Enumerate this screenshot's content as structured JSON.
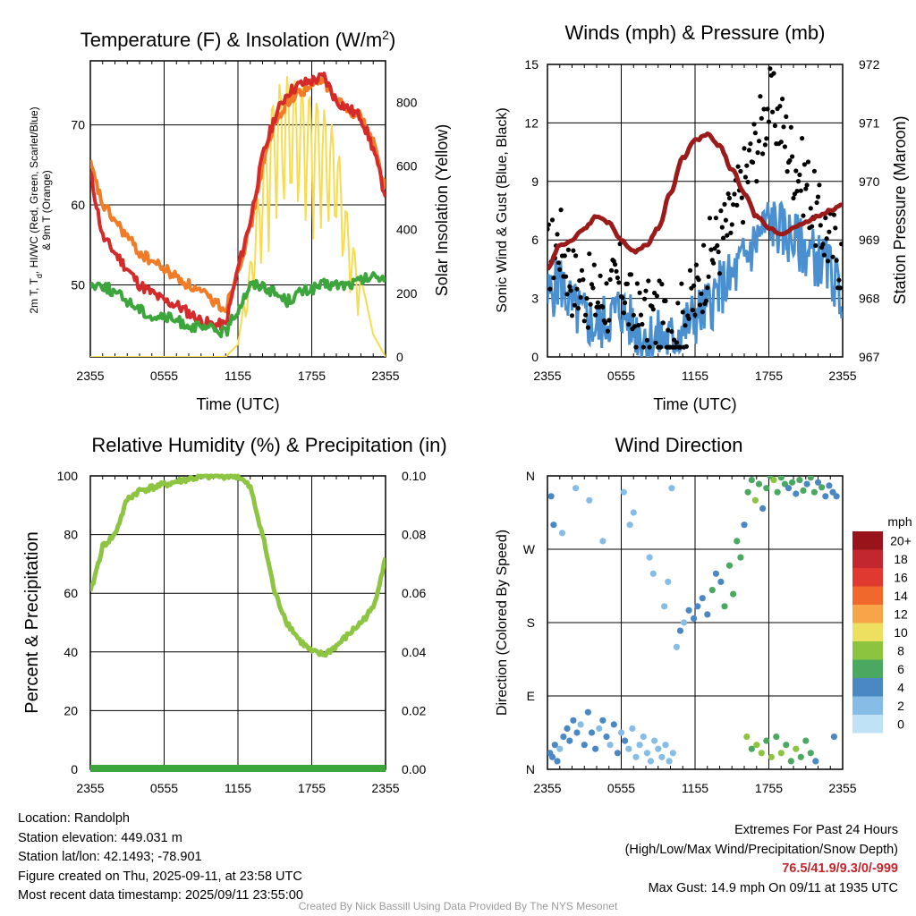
{
  "panels": {
    "temperature": {
      "title_main": "Temperature (F) & Insolation (W/m",
      "title_sup": "2",
      "title_close": ")",
      "ylabel_line1": "2m T, T",
      "ylabel_sub": "d",
      "ylabel_line1_rest": ", HI/WC (Red, Green, Scarlet/Blue)",
      "ylabel_line2": "& 9m T (Orange)",
      "y2label": "Solar Insolation (Yellow)",
      "xlabel": "Time (UTC)"
    },
    "winds": {
      "title": "Winds (mph) & Pressure (mb)",
      "ylabel": "Sonic Wind & Gust (Blue, Black)",
      "y2label": "Station Pressure (Maroon)",
      "xlabel": "Time (UTC)"
    },
    "humidity": {
      "title": "Relative Humidity (%) & Precipitation (in)",
      "ylabel": "Percent & Precipitation"
    },
    "direction": {
      "title": "Wind Direction",
      "ylabel": "Direction (Colored By Speed)",
      "legend_title": "mph"
    }
  },
  "chart_data": [
    {
      "type": "line",
      "title": "Temperature (F) & Insolation (W/m2)",
      "xlabel": "Time (UTC)",
      "ylabel": "2m T, Td, HI/WC (Red, Green, Scarlet/Blue) & 9m T (Orange)",
      "y2label": "Solar Insolation (Yellow)",
      "x_ticks": [
        "2355",
        "0555",
        "1155",
        "1755",
        "2355"
      ],
      "y_ticks": [
        50,
        60,
        70
      ],
      "y2_ticks": [
        0,
        200,
        400,
        600,
        800
      ],
      "ylim": [
        41,
        78
      ],
      "y2lim": [
        0,
        930
      ],
      "x": [
        0,
        1,
        2,
        3,
        4,
        5,
        6,
        7,
        8,
        9,
        10,
        11,
        12,
        13,
        14,
        15,
        16,
        17,
        18,
        19,
        20,
        21,
        22,
        23,
        24
      ],
      "series": [
        {
          "name": "2m T",
          "color": "#d42a2a",
          "axis": "left",
          "values": [
            64,
            56,
            54,
            52,
            50,
            49,
            48,
            47.5,
            46.5,
            45.5,
            45,
            45,
            52,
            58,
            66,
            71,
            74,
            75,
            75.5,
            76,
            73,
            72,
            71,
            67,
            61
          ]
        },
        {
          "name": "9m T",
          "color": "#f07c28",
          "axis": "left",
          "values": [
            65,
            60,
            58,
            56,
            54,
            53,
            52,
            51,
            50,
            49,
            48,
            47,
            52,
            57,
            65,
            70,
            73,
            74,
            75,
            75.5,
            73,
            72,
            71,
            68,
            62
          ]
        },
        {
          "name": "Td",
          "color": "#3ca53c",
          "axis": "left",
          "values": [
            50,
            50,
            49,
            48,
            47,
            46,
            46,
            45.5,
            45,
            44.5,
            44.5,
            44,
            47,
            50,
            50,
            49,
            48,
            49,
            49.5,
            50,
            50,
            50,
            50.5,
            51,
            51
          ]
        },
        {
          "name": "Solar Insolation",
          "color": "#f5dc50",
          "axis": "right",
          "values": [
            0,
            0,
            0,
            0,
            0,
            0,
            0,
            0,
            0,
            0,
            0,
            0,
            40,
            300,
            620,
            850,
            880,
            860,
            830,
            780,
            700,
            420,
            250,
            70,
            0
          ]
        }
      ]
    },
    {
      "type": "line",
      "title": "Winds (mph) & Pressure (mb)",
      "xlabel": "Time (UTC)",
      "ylabel": "Sonic Wind & Gust (Blue, Black)",
      "y2label": "Station Pressure (Maroon)",
      "x_ticks": [
        "2355",
        "0555",
        "1155",
        "1755",
        "2355"
      ],
      "y_ticks": [
        0,
        3,
        6,
        9,
        12,
        15
      ],
      "y2_ticks": [
        967,
        968,
        969,
        970,
        971,
        972
      ],
      "ylim": [
        0,
        15
      ],
      "y2lim": [
        967,
        972
      ],
      "x": [
        0,
        1,
        2,
        3,
        4,
        5,
        6,
        7,
        8,
        9,
        10,
        11,
        12,
        13,
        14,
        15,
        16,
        17,
        18,
        19,
        20,
        21,
        22,
        23,
        24
      ],
      "series": [
        {
          "name": "Sonic Wind",
          "color": "#4a90d0",
          "axis": "left",
          "values": [
            3,
            4,
            2.5,
            2,
            1.5,
            2,
            2.5,
            1.5,
            1,
            1,
            0.8,
            1.5,
            2,
            2.5,
            3.5,
            4,
            5,
            6,
            7,
            6.5,
            6,
            5.5,
            5,
            4.5,
            3
          ]
        },
        {
          "name": "Gust",
          "color": "#000000",
          "axis": "left",
          "values": [
            5,
            6,
            4,
            3.5,
            3,
            3,
            4,
            2,
            2,
            2,
            1.5,
            2,
            3,
            5,
            6,
            7,
            9,
            11,
            13,
            12,
            10,
            9,
            7,
            6,
            5
          ]
        },
        {
          "name": "Station Pressure",
          "color": "#9b1a1a",
          "axis": "right",
          "values": [
            968.5,
            968.9,
            969.0,
            969.2,
            969.4,
            969.3,
            969.0,
            968.8,
            968.9,
            969.2,
            969.8,
            970.4,
            970.7,
            970.8,
            970.6,
            970.2,
            969.8,
            969.4,
            969.2,
            969.1,
            969.2,
            969.3,
            969.4,
            969.5,
            969.6
          ]
        }
      ]
    },
    {
      "type": "line",
      "title": "Relative Humidity (%) & Precipitation (in)",
      "ylabel": "Percent & Precipitation",
      "x_ticks": [
        "2355",
        "0555",
        "1155",
        "1755",
        "2355"
      ],
      "y_ticks": [
        0,
        20,
        40,
        60,
        80,
        100
      ],
      "y2_ticks": [
        "0.00",
        "0.02",
        "0.04",
        "0.06",
        "0.08",
        "0.10"
      ],
      "ylim": [
        0,
        100
      ],
      "y2lim": [
        0,
        0.1
      ],
      "x": [
        0,
        1,
        2,
        3,
        4,
        5,
        6,
        7,
        8,
        9,
        10,
        11,
        12,
        13,
        14,
        15,
        16,
        17,
        18,
        19,
        20,
        21,
        22,
        23,
        24
      ],
      "series": [
        {
          "name": "Relative Humidity",
          "color": "#8dc441",
          "axis": "left",
          "values": [
            60,
            76,
            80,
            92,
            95,
            96,
            97,
            98,
            99,
            99.5,
            100,
            100,
            100,
            96,
            80,
            60,
            50,
            44,
            40,
            39,
            42,
            46,
            50,
            55,
            72
          ]
        },
        {
          "name": "Precipitation",
          "color": "#3ca53c",
          "axis": "right",
          "values": [
            0,
            0,
            0,
            0,
            0,
            0,
            0,
            0,
            0,
            0,
            0,
            0,
            0,
            0,
            0,
            0,
            0,
            0,
            0,
            0,
            0,
            0,
            0,
            0,
            0
          ]
        }
      ]
    },
    {
      "type": "scatter",
      "title": "Wind Direction",
      "ylabel": "Direction (Colored By Speed)",
      "x_ticks": [
        "2355",
        "0555",
        "1155",
        "1755",
        "2355"
      ],
      "y_ticks": [
        "N",
        "E",
        "S",
        "W",
        "N"
      ],
      "ylim": [
        0,
        360
      ],
      "legend_title": "mph",
      "legend": [
        {
          "label": "20+",
          "color": "#98141a"
        },
        {
          "label": "18",
          "color": "#c2272d"
        },
        {
          "label": "16",
          "color": "#e03a30"
        },
        {
          "label": "14",
          "color": "#f0682c"
        },
        {
          "label": "12",
          "color": "#f7a548"
        },
        {
          "label": "10",
          "color": "#ede060"
        },
        {
          "label": "8",
          "color": "#8cc43f"
        },
        {
          "label": "6",
          "color": "#4aa860"
        },
        {
          "label": "4",
          "color": "#4a88c4"
        },
        {
          "label": "2",
          "color": "#86bde6"
        },
        {
          "label": "0",
          "color": "#bfe2f6"
        }
      ],
      "points": [
        [
          0.2,
          20,
          3
        ],
        [
          0.4,
          15,
          4
        ],
        [
          0.6,
          30,
          3
        ],
        [
          0.8,
          10,
          4
        ],
        [
          1.0,
          25,
          2
        ],
        [
          1.3,
          40,
          3
        ],
        [
          1.6,
          50,
          3
        ],
        [
          1.8,
          35,
          4
        ],
        [
          2.1,
          60,
          3
        ],
        [
          2.4,
          45,
          3
        ],
        [
          2.7,
          55,
          2
        ],
        [
          3.0,
          30,
          3
        ],
        [
          3.3,
          70,
          3
        ],
        [
          3.6,
          45,
          4
        ],
        [
          3.9,
          25,
          3
        ],
        [
          4.2,
          50,
          2
        ],
        [
          4.5,
          60,
          3
        ],
        [
          4.8,
          40,
          3
        ],
        [
          5.1,
          30,
          2
        ],
        [
          5.4,
          55,
          3
        ],
        [
          5.7,
          20,
          3
        ],
        [
          6.0,
          45,
          2
        ],
        [
          6.3,
          35,
          3
        ],
        [
          6.6,
          25,
          2
        ],
        [
          6.9,
          50,
          2
        ],
        [
          7.2,
          15,
          1
        ],
        [
          7.5,
          30,
          2
        ],
        [
          7.8,
          40,
          1
        ],
        [
          8.1,
          20,
          2
        ],
        [
          8.4,
          10,
          1
        ],
        [
          8.7,
          35,
          1
        ],
        [
          9.0,
          25,
          2
        ],
        [
          9.3,
          15,
          1
        ],
        [
          9.6,
          30,
          1
        ],
        [
          9.9,
          10,
          2
        ],
        [
          10.2,
          20,
          1
        ],
        [
          0.3,
          335,
          3
        ],
        [
          0.5,
          300,
          3
        ],
        [
          1.2,
          290,
          1
        ],
        [
          2.3,
          345,
          1
        ],
        [
          3.4,
          330,
          1
        ],
        [
          4.5,
          280,
          1
        ],
        [
          6.2,
          340,
          1
        ],
        [
          6.7,
          300,
          1
        ],
        [
          7.0,
          315,
          1
        ],
        [
          8.3,
          260,
          1
        ],
        [
          8.6,
          240,
          1
        ],
        [
          9.5,
          200,
          1
        ],
        [
          9.8,
          230,
          1
        ],
        [
          10.1,
          345,
          1
        ],
        [
          10.5,
          150,
          2
        ],
        [
          10.8,
          170,
          3
        ],
        [
          11.1,
          180,
          2
        ],
        [
          11.5,
          195,
          3
        ],
        [
          11.9,
          185,
          4
        ],
        [
          12.2,
          200,
          3
        ],
        [
          12.6,
          210,
          3
        ],
        [
          13.0,
          190,
          4
        ],
        [
          13.4,
          220,
          5
        ],
        [
          13.7,
          240,
          4
        ],
        [
          14.1,
          230,
          4
        ],
        [
          14.4,
          200,
          5
        ],
        [
          14.8,
          250,
          5
        ],
        [
          15.1,
          215,
          6
        ],
        [
          15.4,
          280,
          6
        ],
        [
          15.7,
          260,
          5
        ],
        [
          16.0,
          300,
          4
        ],
        [
          16.3,
          340,
          5
        ],
        [
          16.6,
          355,
          6
        ],
        [
          16.9,
          330,
          7
        ],
        [
          17.2,
          350,
          5
        ],
        [
          17.5,
          320,
          4
        ],
        [
          17.8,
          345,
          6
        ],
        [
          18.1,
          360,
          6
        ],
        [
          18.4,
          355,
          7
        ],
        [
          18.7,
          340,
          5
        ],
        [
          19.0,
          358,
          6
        ],
        [
          19.3,
          350,
          5
        ],
        [
          19.6,
          345,
          4
        ],
        [
          19.9,
          352,
          5
        ],
        [
          20.2,
          338,
          4
        ],
        [
          20.5,
          355,
          6
        ],
        [
          20.8,
          342,
          5
        ],
        [
          21.1,
          350,
          4
        ],
        [
          21.4,
          358,
          6
        ],
        [
          21.7,
          340,
          5
        ],
        [
          22.0,
          352,
          4
        ],
        [
          22.3,
          346,
          5
        ],
        [
          22.6,
          335,
          4
        ],
        [
          22.9,
          348,
          4
        ],
        [
          23.2,
          340,
          3
        ],
        [
          23.5,
          335,
          4
        ],
        [
          16.2,
          40,
          7
        ],
        [
          16.6,
          25,
          6
        ],
        [
          17.0,
          30,
          8
        ],
        [
          17.4,
          20,
          7
        ],
        [
          17.8,
          35,
          6
        ],
        [
          18.2,
          15,
          7
        ],
        [
          18.6,
          40,
          6
        ],
        [
          19.0,
          20,
          8
        ],
        [
          19.4,
          30,
          6
        ],
        [
          19.8,
          10,
          5
        ],
        [
          20.2,
          25,
          7
        ],
        [
          20.6,
          15,
          6
        ],
        [
          21.0,
          35,
          6
        ],
        [
          21.4,
          20,
          5
        ],
        [
          21.8,
          10,
          4
        ],
        [
          23.3,
          40,
          4
        ]
      ]
    }
  ],
  "footer_left": {
    "location": "Location: Randolph",
    "elevation": "Station elevation: 449.031 m",
    "latlon": "Station lat/lon: 42.1493; -78.901",
    "created": "Figure created on Thu, 2025-09-11, at 23:58 UTC",
    "recent": "Most recent data timestamp: 2025/09/11 23:55:00"
  },
  "footer_right": {
    "heading": "Extremes For Past 24 Hours",
    "subheading": "(High/Low/Max Wind/Precipitation/Snow Depth)",
    "values": "76.5/41.9/9.3/0/-999",
    "max_gust": "Max Gust: 14.9 mph On 09/11 at 1935 UTC"
  },
  "credit": "Created By Nick Bassill Using Data Provided By The NYS Mesonet"
}
